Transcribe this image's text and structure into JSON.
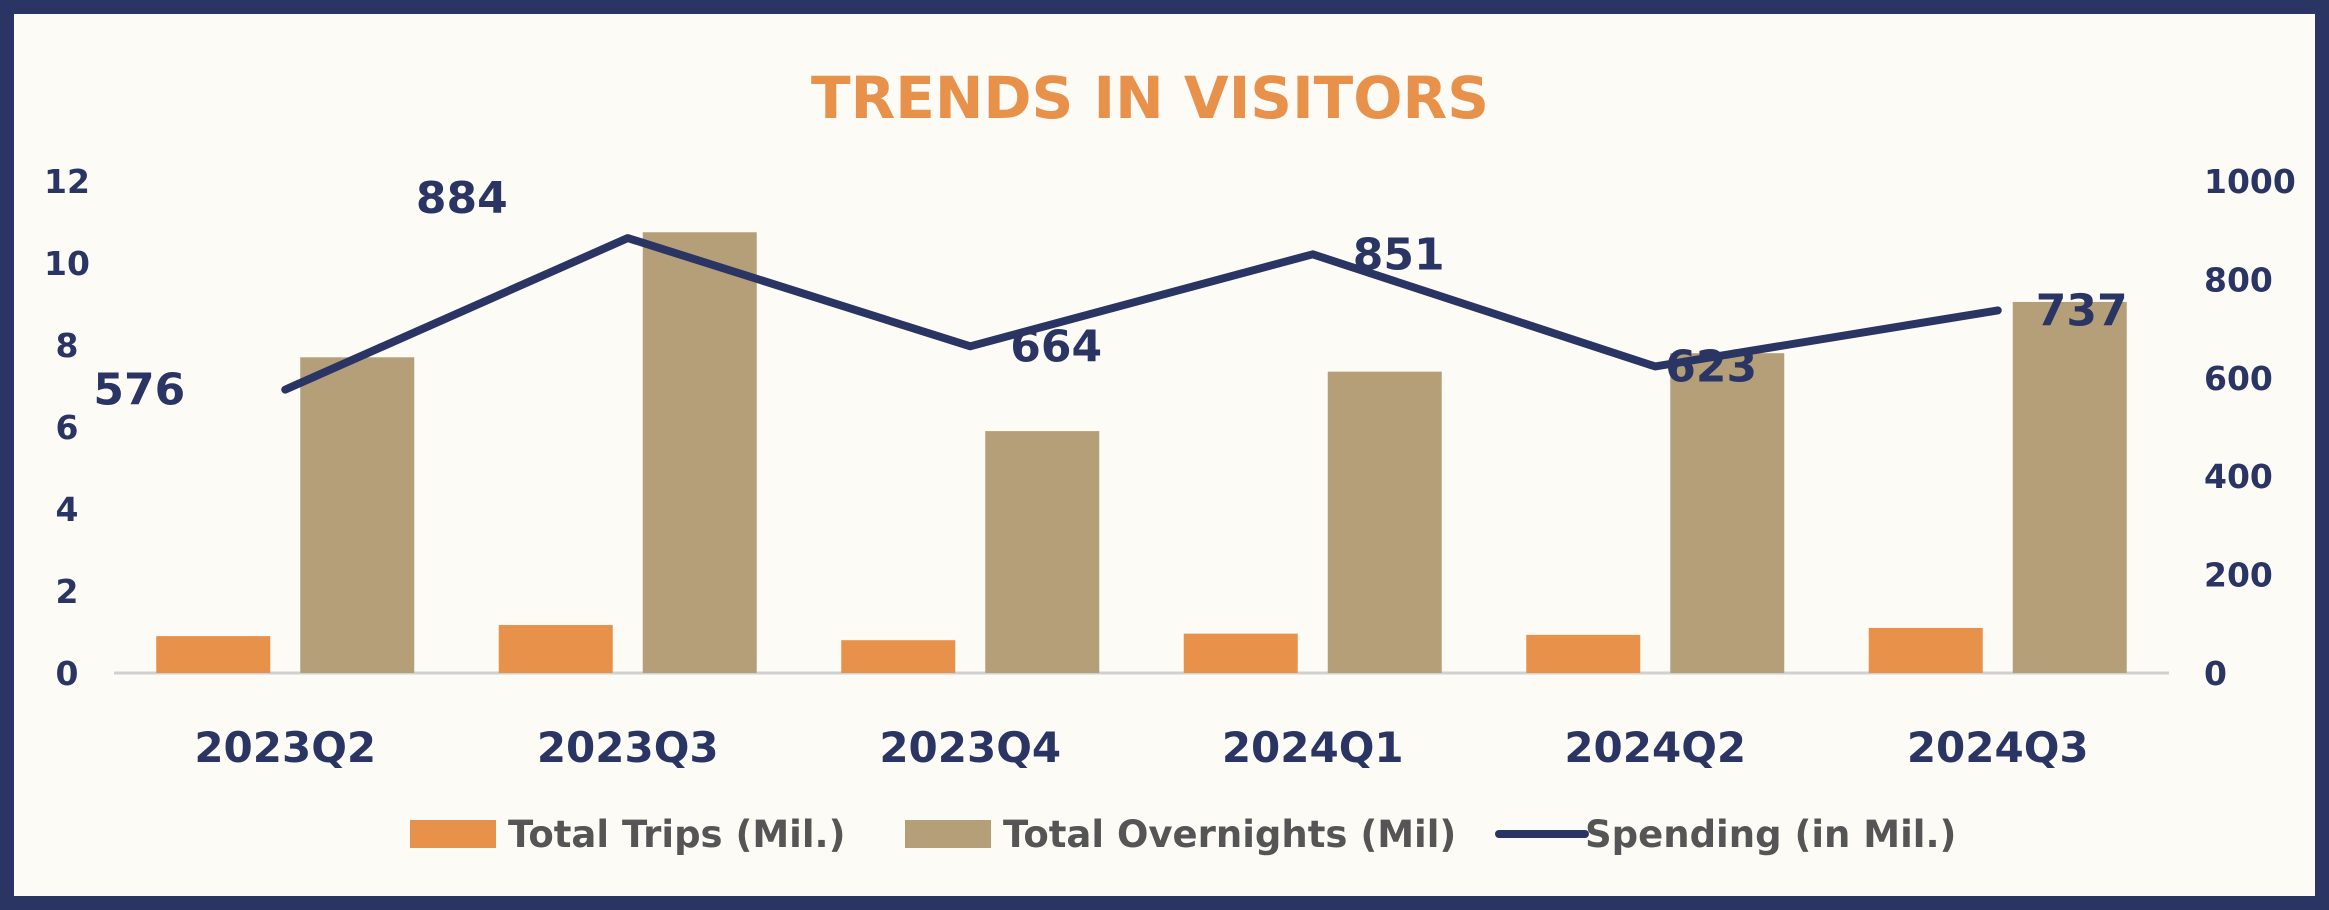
{
  "chart_data": {
    "type": "bar",
    "title": "TRENDS IN VISITORS",
    "categories": [
      "2023Q2",
      "2023Q3",
      "2023Q4",
      "2024Q1",
      "2024Q2",
      "2024Q3"
    ],
    "series": [
      {
        "name": "Total Trips (Mil.)",
        "type": "bar",
        "axis": "left",
        "color": "#e8914b",
        "values": [
          0.9,
          1.17,
          0.8,
          0.96,
          0.93,
          1.1
        ]
      },
      {
        "name": "Total Overnights (Mil)",
        "type": "bar",
        "axis": "left",
        "color": "#b59f78",
        "values": [
          7.7,
          10.75,
          5.9,
          7.35,
          7.8,
          9.05
        ]
      },
      {
        "name": "Spending (in Mil.)",
        "type": "line",
        "axis": "right",
        "color": "#2b3563",
        "values": [
          576,
          884,
          664,
          851,
          623,
          737
        ],
        "labels": [
          "576",
          "884",
          "664",
          "851",
          "623",
          "737"
        ]
      }
    ],
    "left_axis": {
      "min": 0,
      "max": 12,
      "ticks": [
        "0",
        "2",
        "4",
        "6",
        "8",
        "10",
        "12"
      ]
    },
    "right_axis": {
      "min": 0,
      "max": 1000,
      "ticks": [
        "0",
        "200",
        "400",
        "600",
        "800",
        "1000"
      ]
    },
    "legend_position": "bottom",
    "grid": false,
    "colors": {
      "title": "#e8914b",
      "text": "#2b3563",
      "legend_text": "#555555",
      "axis_line": "#d0d0d0"
    }
  }
}
